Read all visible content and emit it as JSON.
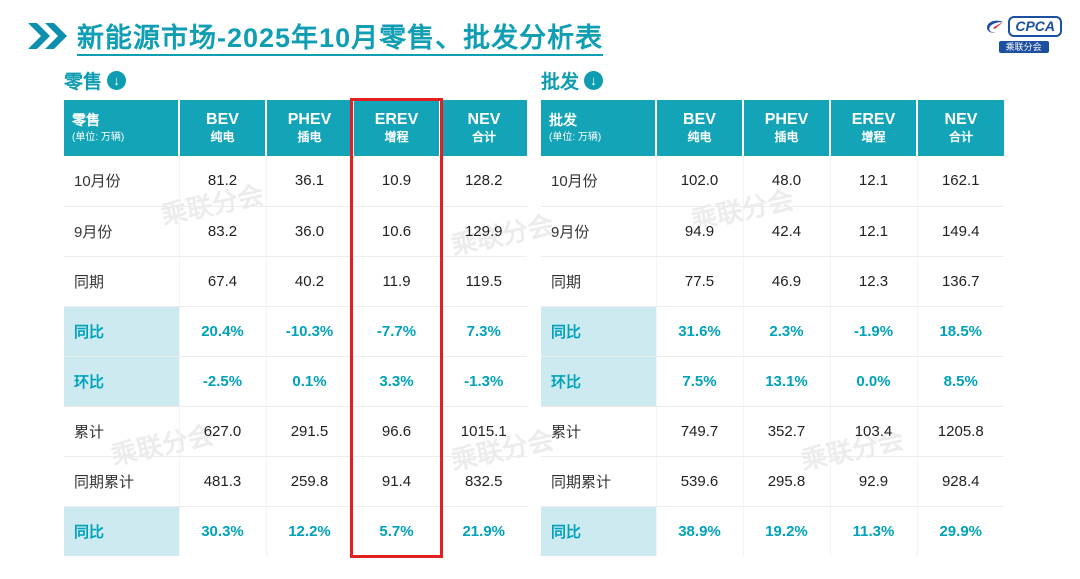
{
  "page": {
    "title": "新能源市场-2025年10月零售、批发分析表",
    "logo_text": "CPCA",
    "logo_caption": "乘联分会",
    "watermark": "乘联分会"
  },
  "colors": {
    "teal_accent": "#0f9eb4",
    "table_header_bg": "#14a4b8",
    "percent_text": "#00a2ba",
    "percent_label_bg": "#cdeaf1",
    "highlight_red": "#e32020",
    "logo_blue": "#1d4fa0"
  },
  "chart_data": [
    {
      "type": "table",
      "id": "retail",
      "title": "零售",
      "unit_note": "(单位: 万辆)",
      "highlight_column": 3,
      "columns": [
        {
          "line1": "零售",
          "line2": "(单位: 万辆)"
        },
        {
          "line1": "BEV",
          "line2": "纯电"
        },
        {
          "line1": "PHEV",
          "line2": "插电"
        },
        {
          "line1": "EREV",
          "line2": "增程"
        },
        {
          "line1": "NEV",
          "line2": "合计"
        }
      ],
      "rows": [
        {
          "label": "10月份",
          "type": "data",
          "values": [
            "81.2",
            "36.1",
            "10.9",
            "128.2"
          ]
        },
        {
          "label": "9月份",
          "type": "data",
          "values": [
            "83.2",
            "36.0",
            "10.6",
            "129.9"
          ]
        },
        {
          "label": "同期",
          "type": "data",
          "values": [
            "67.4",
            "40.2",
            "11.9",
            "119.5"
          ]
        },
        {
          "label": "同比",
          "type": "percent",
          "values": [
            "20.4%",
            "-10.3%",
            "-7.7%",
            "7.3%"
          ]
        },
        {
          "label": "环比",
          "type": "percent",
          "values": [
            "-2.5%",
            "0.1%",
            "3.3%",
            "-1.3%"
          ]
        },
        {
          "label": "累计",
          "type": "data",
          "values": [
            "627.0",
            "291.5",
            "96.6",
            "1015.1"
          ]
        },
        {
          "label": "同期累计",
          "type": "data",
          "values": [
            "481.3",
            "259.8",
            "91.4",
            "832.5"
          ]
        },
        {
          "label": "同比",
          "type": "percent",
          "values": [
            "30.3%",
            "12.2%",
            "5.7%",
            "21.9%"
          ]
        }
      ]
    },
    {
      "type": "table",
      "id": "wholesale",
      "title": "批发",
      "unit_note": "(单位: 万辆)",
      "highlight_column": null,
      "columns": [
        {
          "line1": "批发",
          "line2": "(单位: 万辆)"
        },
        {
          "line1": "BEV",
          "line2": "纯电"
        },
        {
          "line1": "PHEV",
          "line2": "插电"
        },
        {
          "line1": "EREV",
          "line2": "增程"
        },
        {
          "line1": "NEV",
          "line2": "合计"
        }
      ],
      "rows": [
        {
          "label": "10月份",
          "type": "data",
          "values": [
            "102.0",
            "48.0",
            "12.1",
            "162.1"
          ]
        },
        {
          "label": "9月份",
          "type": "data",
          "values": [
            "94.9",
            "42.4",
            "12.1",
            "149.4"
          ]
        },
        {
          "label": "同期",
          "type": "data",
          "values": [
            "77.5",
            "46.9",
            "12.3",
            "136.7"
          ]
        },
        {
          "label": "同比",
          "type": "percent",
          "values": [
            "31.6%",
            "2.3%",
            "-1.9%",
            "18.5%"
          ]
        },
        {
          "label": "环比",
          "type": "percent",
          "values": [
            "7.5%",
            "13.1%",
            "0.0%",
            "8.5%"
          ]
        },
        {
          "label": "累计",
          "type": "data",
          "values": [
            "749.7",
            "352.7",
            "103.4",
            "1205.8"
          ]
        },
        {
          "label": "同期累计",
          "type": "data",
          "values": [
            "539.6",
            "295.8",
            "92.9",
            "928.4"
          ]
        },
        {
          "label": "同比",
          "type": "percent",
          "values": [
            "38.9%",
            "19.2%",
            "11.3%",
            "29.9%"
          ]
        }
      ]
    }
  ]
}
